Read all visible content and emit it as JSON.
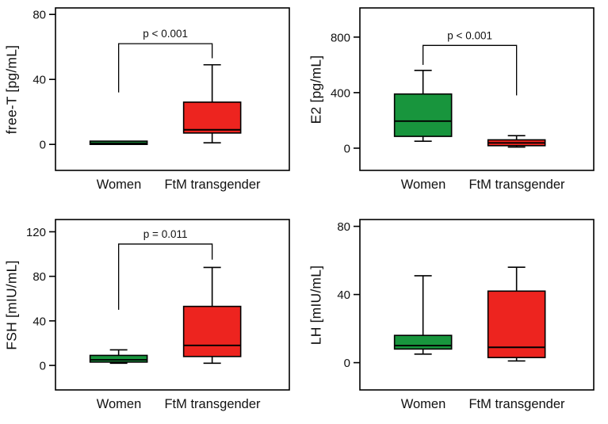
{
  "figure": {
    "background": "#ffffff",
    "stroke_color": "#000000"
  },
  "colors": {
    "women": "#18953d",
    "ftm_transgender": "#ed241f"
  },
  "chart_data": [
    {
      "type": "box",
      "ylabel": "free-T [pg/mL]",
      "ylim": [
        -16,
        84
      ],
      "yticks": [
        0,
        40,
        80
      ],
      "categories": [
        "Women",
        "FtM transgender"
      ],
      "series": [
        {
          "name": "Women",
          "color": "#18953d",
          "whisker_low": 0,
          "q1": 0,
          "median": 0.7,
          "q3": 2,
          "whisker_high": 2
        },
        {
          "name": "FtM transgender",
          "color": "#ed241f",
          "whisker_low": 1,
          "q1": 7,
          "median": 9,
          "q3": 26,
          "whisker_high": 49
        }
      ],
      "annotation": {
        "text": "p < 0.001",
        "bar": 62,
        "left_drop": 32,
        "right_drop": 53
      }
    },
    {
      "type": "box",
      "ylabel": "E2 [pg/mL]",
      "ylim": [
        -160,
        1010
      ],
      "yticks": [
        0,
        400,
        800
      ],
      "categories": [
        "Women",
        "FtM transgender"
      ],
      "series": [
        {
          "name": "Women",
          "color": "#18953d",
          "whisker_low": 50,
          "q1": 85,
          "median": 195,
          "q3": 390,
          "whisker_high": 560
        },
        {
          "name": "FtM transgender",
          "color": "#ed241f",
          "whisker_low": 8,
          "q1": 18,
          "median": 38,
          "q3": 60,
          "whisker_high": 90
        }
      ],
      "annotation": {
        "text": "p < 0.001",
        "bar": 740,
        "left_drop": 600,
        "right_drop": 380
      }
    },
    {
      "type": "box",
      "ylabel": "FSH [mIU/mL]",
      "ylim": [
        -22,
        131
      ],
      "yticks": [
        0,
        40,
        80,
        120
      ],
      "categories": [
        "Women",
        "FtM transgender"
      ],
      "series": [
        {
          "name": "Women",
          "color": "#18953d",
          "whisker_low": 2,
          "q1": 3,
          "median": 5,
          "q3": 9,
          "whisker_high": 14
        },
        {
          "name": "FtM transgender",
          "color": "#ed241f",
          "whisker_low": 2,
          "q1": 8,
          "median": 18,
          "q3": 53,
          "whisker_high": 88
        }
      ],
      "annotation": {
        "text": "p = 0.011",
        "bar": 109,
        "left_drop": 50,
        "right_drop": 95
      }
    },
    {
      "type": "box",
      "ylabel": "LH [mIU/mL]",
      "ylim": [
        -16,
        84
      ],
      "yticks": [
        0,
        40,
        80
      ],
      "categories": [
        "Women",
        "FtM transgender"
      ],
      "series": [
        {
          "name": "Women",
          "color": "#18953d",
          "whisker_low": 5,
          "q1": 8,
          "median": 10,
          "q3": 16,
          "whisker_high": 51
        },
        {
          "name": "FtM transgender",
          "color": "#ed241f",
          "whisker_low": 1,
          "q1": 3,
          "median": 9,
          "q3": 42,
          "whisker_high": 56
        }
      ],
      "annotation": null
    }
  ]
}
